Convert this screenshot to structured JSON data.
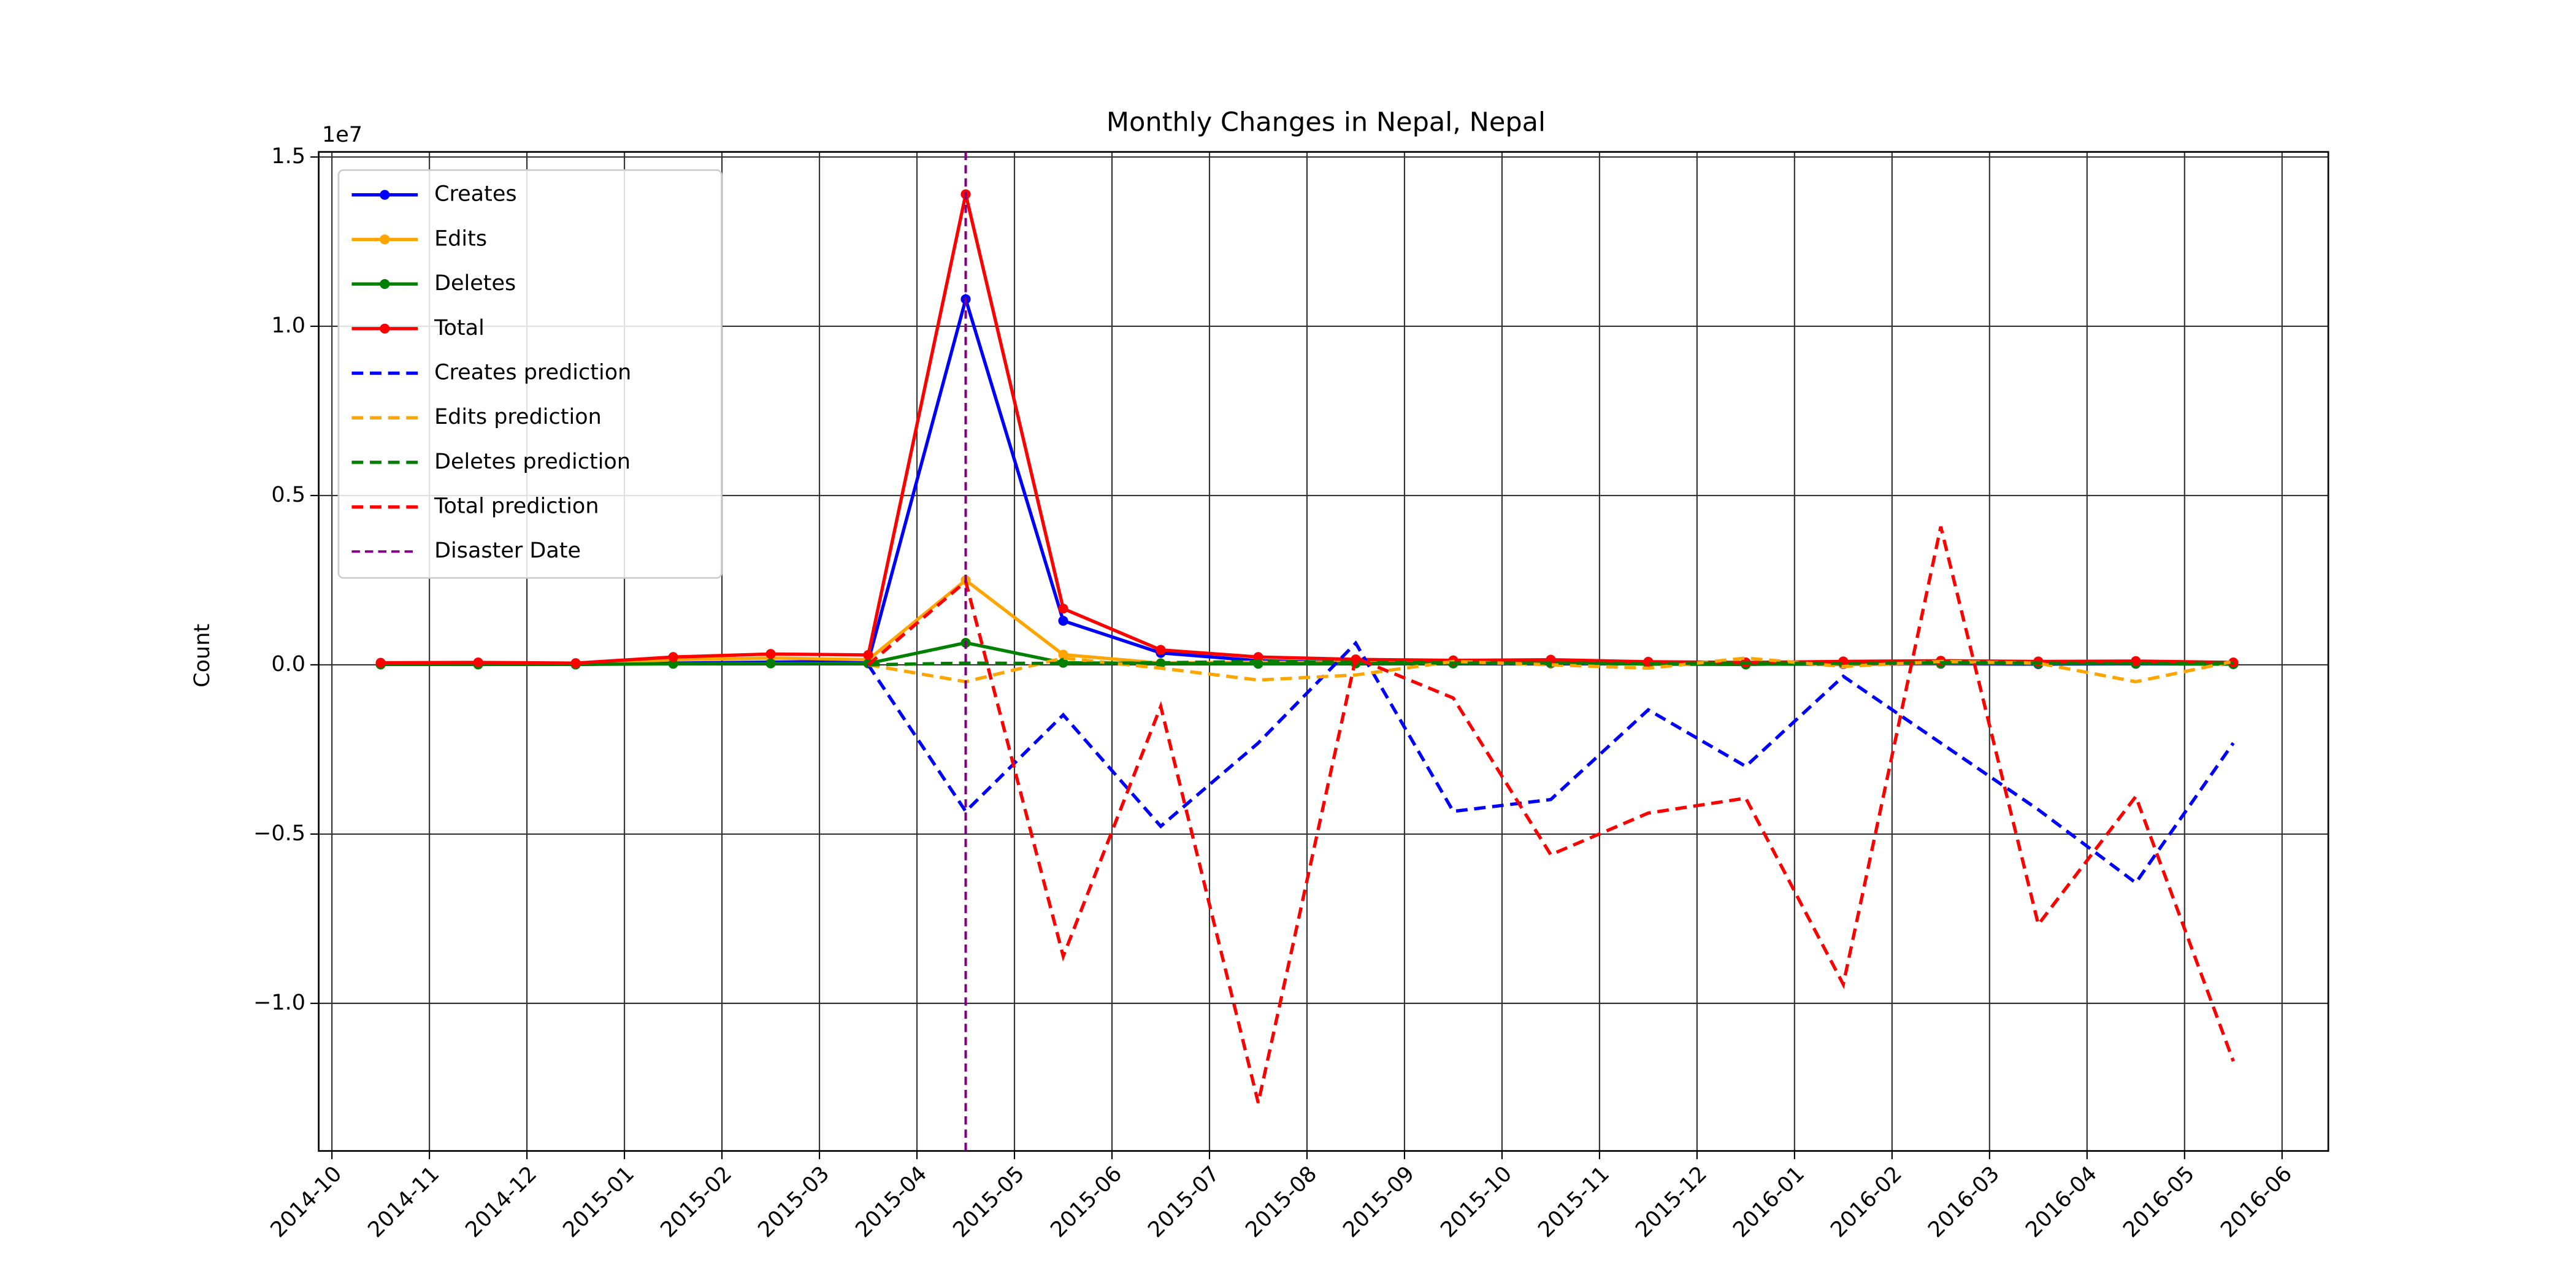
{
  "chart_data": {
    "type": "line",
    "title": "Monthly Changes in Nepal, Nepal",
    "y_label": "Count",
    "y_offset_label": "1e7",
    "x": [
      "2014-10",
      "2014-11",
      "2014-12",
      "2015-01",
      "2015-02",
      "2015-03",
      "2015-04",
      "2015-05",
      "2015-06",
      "2015-07",
      "2015-08",
      "2015-09",
      "2015-10",
      "2015-11",
      "2015-12",
      "2016-01",
      "2016-02",
      "2016-03",
      "2016-04",
      "2016-05"
    ],
    "xlim": [
      "2014-10",
      "2016-06"
    ],
    "xticks": [
      "2014-10",
      "2014-11",
      "2014-12",
      "2015-01",
      "2015-02",
      "2015-03",
      "2015-04",
      "2015-05",
      "2015-06",
      "2015-07",
      "2015-08",
      "2015-09",
      "2015-10",
      "2015-11",
      "2015-12",
      "2016-01",
      "2016-02",
      "2016-03",
      "2016-04",
      "2016-05",
      "2016-06"
    ],
    "ylim": [
      -1.436,
      1.515
    ],
    "yticks": [
      {
        "value": -1,
        "label": "−1.0"
      },
      {
        "value": -0.5,
        "label": "−0.5"
      },
      {
        "value": 0,
        "label": "0.0"
      },
      0.5,
      {
        "value": 1,
        "label": "1.0"
      },
      1.5
    ],
    "grid": true,
    "legend": "upper left",
    "series": [
      {
        "name": "Creates",
        "color": "blue",
        "style": "solid",
        "marker": true,
        "values": [
          0.002,
          0.002,
          0.001,
          0.005,
          0.008,
          0.01,
          1.08,
          0.13,
          0.035,
          0.012,
          0.006,
          0.004,
          0.004,
          0.003,
          0.002,
          0.002,
          0.003,
          0.002,
          0.003,
          0.002
        ]
      },
      {
        "name": "Edits",
        "color": "orange",
        "style": "solid",
        "marker": true,
        "values": [
          0.003,
          0.004,
          0.003,
          0.015,
          0.02,
          0.015,
          0.25,
          0.03,
          0.005,
          0.008,
          0.006,
          0.005,
          0.005,
          0.004,
          0.004,
          0.003,
          0.004,
          0.004,
          0.004,
          0.003
        ]
      },
      {
        "name": "Deletes",
        "color": "green",
        "style": "solid",
        "marker": true,
        "values": [
          0.001,
          0.001,
          0.001,
          0.003,
          0.004,
          0.004,
          0.065,
          0.006,
          0.004,
          0.003,
          0.004,
          0.004,
          0.006,
          0.002,
          0.001,
          0.005,
          0.005,
          0.004,
          0.004,
          0.002
        ]
      },
      {
        "name": "Total",
        "color": "red",
        "style": "solid",
        "marker": true,
        "values": [
          0.006,
          0.007,
          0.005,
          0.023,
          0.032,
          0.029,
          1.39,
          0.166,
          0.044,
          0.023,
          0.016,
          0.013,
          0.015,
          0.009,
          0.007,
          0.01,
          0.012,
          0.01,
          0.011,
          0.007
        ]
      },
      {
        "name": "Creates prediction",
        "color": "blue",
        "style": "dashed",
        "marker": false,
        "values": [
          null,
          null,
          null,
          null,
          null,
          0.0,
          -0.433,
          -0.148,
          -0.477,
          -0.231,
          0.064,
          -0.433,
          -0.398,
          -0.133,
          -0.3,
          -0.034,
          -0.231,
          -0.428,
          -0.644,
          -0.231
        ]
      },
      {
        "name": "Edits prediction",
        "color": "orange",
        "style": "dashed",
        "marker": false,
        "values": [
          null,
          null,
          null,
          null,
          null,
          0.0,
          -0.05,
          0.02,
          -0.01,
          -0.045,
          -0.03,
          0.01,
          0.0,
          -0.01,
          0.02,
          -0.005,
          0.01,
          0.005,
          -0.05,
          0.01
        ]
      },
      {
        "name": "Deletes prediction",
        "color": "green",
        "style": "dashed",
        "marker": false,
        "values": [
          null,
          null,
          null,
          null,
          null,
          0.0,
          0.005,
          0.004,
          0.006,
          0.01,
          0.008,
          0.005,
          0.005,
          0.004,
          0.005,
          0.004,
          0.006,
          0.005,
          0.004,
          0.005
        ]
      },
      {
        "name": "Total prediction",
        "color": "red",
        "style": "dashed",
        "marker": false,
        "values": [
          null,
          null,
          null,
          null,
          null,
          0.0,
          0.246,
          -0.861,
          -0.123,
          -1.294,
          0.02,
          -0.098,
          -0.561,
          -0.438,
          -0.394,
          -0.944,
          0.408,
          -0.767,
          -0.389,
          -1.171
        ]
      }
    ],
    "vline": {
      "name": "Disaster Date",
      "x": "2015-04",
      "color": "purple"
    }
  }
}
